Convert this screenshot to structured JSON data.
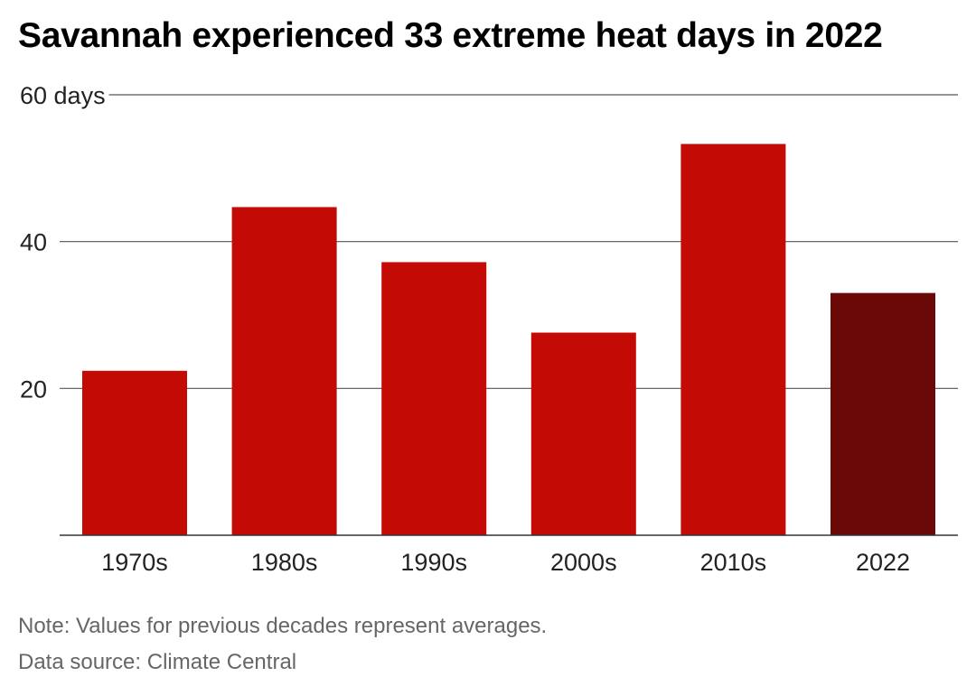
{
  "chart_data": {
    "type": "bar",
    "title": "Savannah experienced 33 extreme heat days in 2022",
    "ylabel": "",
    "y_unit": "days",
    "ylim": [
      0,
      60
    ],
    "y_ticks": [
      {
        "value": 60,
        "label": "60 days"
      },
      {
        "value": 40,
        "label": "40"
      },
      {
        "value": 20,
        "label": "20"
      }
    ],
    "categories": [
      "1970s",
      "1980s",
      "1990s",
      "2000s",
      "2010s",
      "2022"
    ],
    "values": [
      22.4,
      44.7,
      37.2,
      27.6,
      53.3,
      33
    ],
    "bar_color": "#c40a04",
    "highlight_color": "#6b0909",
    "highlight_category": "2022",
    "grid": true
  },
  "notes": {
    "note": "Note: Values for previous decades represent averages.",
    "source": "Data source: Climate Central"
  }
}
